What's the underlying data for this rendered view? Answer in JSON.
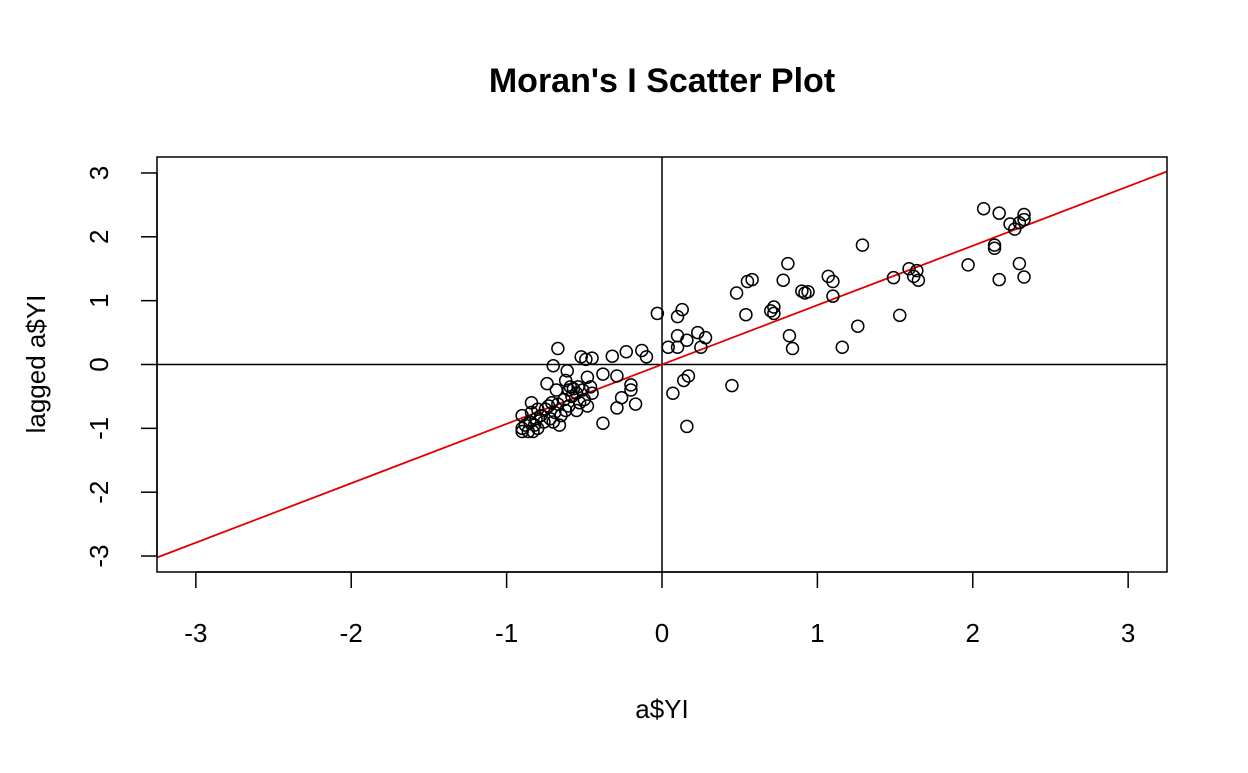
{
  "chart_data": {
    "type": "scatter",
    "title": "Moran's I Scatter Plot",
    "xlabel": "a$YI",
    "ylabel": "lagged a$YI",
    "xlim": [
      -3.25,
      3.25
    ],
    "ylim": [
      -3.25,
      3.25
    ],
    "xticks": [
      -3,
      -2,
      -1,
      0,
      1,
      2,
      3
    ],
    "yticks": [
      -3,
      -2,
      -1,
      0,
      1,
      2,
      3
    ],
    "xtick_labels": [
      "-3",
      "-2",
      "-1",
      "0",
      "1",
      "2",
      "3"
    ],
    "ytick_labels": [
      "-3",
      "-2",
      "-1",
      "0",
      "1",
      "2",
      "3"
    ],
    "grid": false,
    "reference_lines": {
      "x": 0,
      "y": 0,
      "color": "#000000"
    },
    "regression_line": {
      "slope": 0.93,
      "intercept": 0.0,
      "color": "#e00000"
    },
    "marker": {
      "shape": "open-circle",
      "color": "#000000"
    },
    "points": [
      [
        -0.9,
        -0.8
      ],
      [
        -0.9,
        -1.0
      ],
      [
        -0.9,
        -1.05
      ],
      [
        -0.88,
        -0.95
      ],
      [
        -0.86,
        -1.05
      ],
      [
        -0.85,
        -0.9
      ],
      [
        -0.84,
        -0.6
      ],
      [
        -0.84,
        -0.75
      ],
      [
        -0.83,
        -1.05
      ],
      [
        -0.82,
        -0.95
      ],
      [
        -0.81,
        -0.85
      ],
      [
        -0.8,
        -0.7
      ],
      [
        -0.8,
        -1.0
      ],
      [
        -0.78,
        -0.8
      ],
      [
        -0.76,
        -0.9
      ],
      [
        -0.75,
        -0.7
      ],
      [
        -0.74,
        -0.3
      ],
      [
        -0.73,
        -0.65
      ],
      [
        -0.72,
        -0.85
      ],
      [
        -0.71,
        -0.6
      ],
      [
        -0.7,
        -0.02
      ],
      [
        -0.7,
        -0.9
      ],
      [
        -0.69,
        -0.75
      ],
      [
        -0.68,
        -0.4
      ],
      [
        -0.67,
        0.25
      ],
      [
        -0.67,
        -0.62
      ],
      [
        -0.66,
        -0.95
      ],
      [
        -0.65,
        -0.8
      ],
      [
        -0.63,
        -0.55
      ],
      [
        -0.62,
        -0.25
      ],
      [
        -0.62,
        -0.72
      ],
      [
        -0.61,
        -0.1
      ],
      [
        -0.6,
        -0.4
      ],
      [
        -0.6,
        -0.65
      ],
      [
        -0.59,
        -0.35
      ],
      [
        -0.58,
        -0.5
      ],
      [
        -0.57,
        -0.38
      ],
      [
        -0.55,
        -0.72
      ],
      [
        -0.55,
        -0.45
      ],
      [
        -0.54,
        -0.35
      ],
      [
        -0.53,
        -0.6
      ],
      [
        -0.52,
        0.12
      ],
      [
        -0.51,
        -0.4
      ],
      [
        -0.5,
        -0.55
      ],
      [
        -0.49,
        0.08
      ],
      [
        -0.48,
        -0.2
      ],
      [
        -0.48,
        -0.65
      ],
      [
        -0.46,
        -0.35
      ],
      [
        -0.45,
        0.1
      ],
      [
        -0.45,
        -0.45
      ],
      [
        -0.38,
        -0.15
      ],
      [
        -0.38,
        -0.92
      ],
      [
        -0.32,
        0.13
      ],
      [
        -0.29,
        -0.18
      ],
      [
        -0.29,
        -0.68
      ],
      [
        -0.26,
        -0.52
      ],
      [
        -0.23,
        0.2
      ],
      [
        -0.2,
        -0.32
      ],
      [
        -0.2,
        -0.4
      ],
      [
        -0.17,
        -0.62
      ],
      [
        -0.13,
        0.22
      ],
      [
        -0.1,
        0.12
      ],
      [
        -0.03,
        0.8
      ],
      [
        0.04,
        0.27
      ],
      [
        0.07,
        -0.45
      ],
      [
        0.1,
        0.75
      ],
      [
        0.1,
        0.45
      ],
      [
        0.1,
        0.27
      ],
      [
        0.13,
        0.86
      ],
      [
        0.14,
        -0.25
      ],
      [
        0.16,
        0.38
      ],
      [
        0.16,
        -0.97
      ],
      [
        0.17,
        -0.18
      ],
      [
        0.23,
        0.5
      ],
      [
        0.25,
        0.27
      ],
      [
        0.28,
        0.42
      ],
      [
        0.45,
        -0.33
      ],
      [
        0.48,
        1.12
      ],
      [
        0.54,
        0.78
      ],
      [
        0.55,
        1.3
      ],
      [
        0.58,
        1.33
      ],
      [
        0.7,
        0.84
      ],
      [
        0.72,
        0.8
      ],
      [
        0.72,
        0.9
      ],
      [
        0.78,
        1.32
      ],
      [
        0.81,
        1.58
      ],
      [
        0.82,
        0.45
      ],
      [
        0.84,
        0.25
      ],
      [
        0.9,
        1.15
      ],
      [
        0.92,
        1.12
      ],
      [
        0.94,
        1.14
      ],
      [
        1.07,
        1.38
      ],
      [
        1.1,
        1.3
      ],
      [
        1.1,
        1.07
      ],
      [
        1.16,
        0.27
      ],
      [
        1.26,
        0.6
      ],
      [
        1.29,
        1.87
      ],
      [
        1.49,
        1.36
      ],
      [
        1.53,
        0.77
      ],
      [
        1.59,
        1.5
      ],
      [
        1.62,
        1.38
      ],
      [
        1.64,
        1.47
      ],
      [
        1.65,
        1.32
      ],
      [
        1.97,
        1.56
      ],
      [
        2.07,
        2.44
      ],
      [
        2.14,
        1.82
      ],
      [
        2.14,
        1.87
      ],
      [
        2.17,
        2.37
      ],
      [
        2.17,
        1.33
      ],
      [
        2.24,
        2.2
      ],
      [
        2.27,
        2.12
      ],
      [
        2.3,
        2.22
      ],
      [
        2.3,
        1.58
      ],
      [
        2.33,
        2.35
      ],
      [
        2.33,
        2.27
      ],
      [
        2.33,
        1.37
      ]
    ]
  }
}
